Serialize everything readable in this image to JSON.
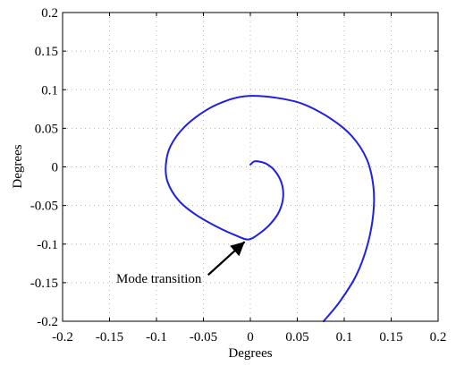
{
  "chart_data": {
    "type": "line",
    "title": "",
    "xlabel": "Degrees",
    "ylabel": "Degrees",
    "xlim": [
      -0.2,
      0.2
    ],
    "ylim": [
      -0.2,
      0.2
    ],
    "x_ticks": [
      -0.2,
      -0.15,
      -0.1,
      -0.05,
      0,
      0.05,
      0.1,
      0.15,
      0.2
    ],
    "y_ticks": [
      -0.2,
      -0.15,
      -0.1,
      -0.05,
      0,
      0.05,
      0.1,
      0.15,
      0.2
    ],
    "x_tick_labels": [
      "-0.2",
      "-0.15",
      "-0.1",
      "-0.05",
      "0",
      "0.05",
      "0.1",
      "0.15",
      "0.2"
    ],
    "y_tick_labels": [
      "-0.2",
      "-0.15",
      "-0.1",
      "-0.05",
      "0",
      "0.05",
      "0.1",
      "0.15",
      "0.2"
    ],
    "grid": true,
    "grid_style": "dotted",
    "line_color": "#1f1fe6",
    "series": [
      {
        "name": "",
        "points": [
          [
            0.0,
            0.003
          ],
          [
            0.004,
            0.007
          ],
          [
            0.009,
            0.007
          ],
          [
            0.017,
            0.004
          ],
          [
            0.026,
            -0.005
          ],
          [
            0.033,
            -0.02
          ],
          [
            0.035,
            -0.038
          ],
          [
            0.031,
            -0.057
          ],
          [
            0.022,
            -0.073
          ],
          [
            0.01,
            -0.086
          ],
          [
            -0.002,
            -0.094
          ],
          [
            -0.015,
            -0.089
          ],
          [
            -0.035,
            -0.078
          ],
          [
            -0.058,
            -0.062
          ],
          [
            -0.076,
            -0.044
          ],
          [
            -0.088,
            -0.02
          ],
          [
            -0.09,
            0.003
          ],
          [
            -0.085,
            0.027
          ],
          [
            -0.07,
            0.052
          ],
          [
            -0.045,
            0.075
          ],
          [
            -0.02,
            0.088
          ],
          [
            0.0,
            0.092
          ],
          [
            0.025,
            0.09
          ],
          [
            0.055,
            0.082
          ],
          [
            0.085,
            0.063
          ],
          [
            0.108,
            0.04
          ],
          [
            0.124,
            0.01
          ],
          [
            0.131,
            -0.025
          ],
          [
            0.131,
            -0.06
          ],
          [
            0.125,
            -0.1
          ],
          [
            0.113,
            -0.14
          ],
          [
            0.095,
            -0.175
          ],
          [
            0.078,
            -0.2
          ]
        ]
      }
    ],
    "annotations": [
      {
        "text": "Mode transition",
        "arrow_from": [
          -0.045,
          -0.14
        ],
        "arrow_to": [
          -0.006,
          -0.097
        ]
      }
    ]
  }
}
